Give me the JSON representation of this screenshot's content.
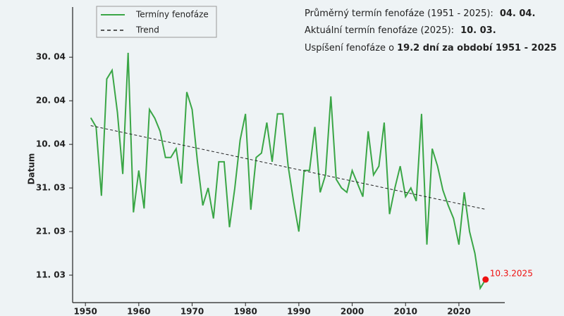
{
  "chart_data": {
    "type": "line",
    "x": [
      1951,
      1952,
      1953,
      1954,
      1955,
      1956,
      1957,
      1958,
      1959,
      1960,
      1961,
      1962,
      1963,
      1964,
      1965,
      1966,
      1967,
      1968,
      1969,
      1970,
      1971,
      1972,
      1973,
      1974,
      1975,
      1976,
      1977,
      1978,
      1979,
      1980,
      1981,
      1982,
      1983,
      1984,
      1985,
      1986,
      1987,
      1988,
      1989,
      1990,
      1991,
      1992,
      1993,
      1994,
      1995,
      1996,
      1997,
      1998,
      1999,
      2000,
      2001,
      2002,
      2003,
      2004,
      2005,
      2006,
      2007,
      2008,
      2009,
      2010,
      2011,
      2012,
      2013,
      2014,
      2015,
      2016,
      2017,
      2018,
      2019,
      2020,
      2021,
      2022,
      2023,
      2024,
      2025
    ],
    "series": [
      {
        "name": "Termíny fenofáze",
        "color": "#3aa646",
        "values": [
          106.1,
          104,
          88.2,
          115,
          117,
          107.3,
          93.2,
          121,
          84.4,
          94,
          85.3,
          108,
          106,
          103,
          97,
          97,
          99,
          91,
          112,
          108,
          96,
          86,
          90,
          83,
          96,
          96,
          81,
          90,
          101,
          107,
          85,
          97,
          98,
          105,
          96,
          107,
          107,
          95,
          87,
          80,
          94,
          94,
          104,
          89,
          93,
          111,
          92,
          90,
          89,
          94,
          91,
          88,
          103,
          93,
          95,
          105,
          84,
          90,
          95,
          88,
          90,
          87,
          107,
          77,
          99,
          95,
          89.5,
          86,
          83,
          77,
          89,
          80,
          75,
          67,
          69
        ]
      }
    ],
    "trend": {
      "name": "Trend",
      "x": [
        1951,
        2025
      ],
      "values": [
        104.3,
        85.1
      ],
      "color": "#222222"
    },
    "highlight": {
      "label": "10.3.2025",
      "color": "#ee1111"
    },
    "annotations": [
      {
        "text": "Průměrný termín fenofáze (1951 - 2025):",
        "bold": "04. 04."
      },
      {
        "text": "Aktuální termín fenofáze (2025):",
        "bold": "10. 03."
      },
      {
        "text": "Uspíšení fenofáze o",
        "bold": "19.2 dní za období 1951 - 2025"
      }
    ],
    "ylabel": "Datum",
    "xlim": [
      1947.6,
      2028.6
    ],
    "ylim": [
      63.7,
      131.5
    ],
    "xticks": [
      1950,
      1960,
      1970,
      1980,
      1990,
      2000,
      2010,
      2020
    ],
    "yticks": [
      {
        "value": 70,
        "label": "11. 03"
      },
      {
        "value": 80,
        "label": "21. 03"
      },
      {
        "value": 90,
        "label": "31. 03"
      },
      {
        "value": 100,
        "label": "10. 04"
      },
      {
        "value": 110,
        "label": "20. 04"
      },
      {
        "value": 120,
        "label": "30. 04"
      }
    ]
  }
}
